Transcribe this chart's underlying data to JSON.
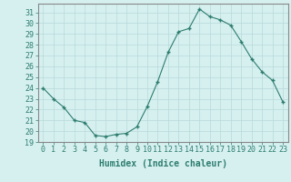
{
  "x": [
    0,
    1,
    2,
    3,
    4,
    5,
    6,
    7,
    8,
    9,
    10,
    11,
    12,
    13,
    14,
    15,
    16,
    17,
    18,
    19,
    20,
    21,
    22,
    23
  ],
  "y": [
    24.0,
    23.0,
    22.2,
    21.0,
    20.8,
    19.6,
    19.5,
    19.7,
    19.8,
    20.4,
    22.3,
    24.6,
    27.3,
    29.2,
    29.5,
    31.3,
    30.6,
    30.3,
    29.8,
    28.3,
    26.7,
    25.5,
    24.7,
    22.7
  ],
  "line_color": "#2d7d6e",
  "marker": "+",
  "marker_size": 3,
  "marker_lw": 1.0,
  "bg_color": "#d6f0f0",
  "grid_color": "#b8d8d8",
  "xlabel": "Humidex (Indice chaleur)",
  "xlabel_fontsize": 7,
  "tick_fontsize": 6,
  "xlim": [
    -0.5,
    23.5
  ],
  "ylim": [
    19,
    31.8
  ],
  "yticks": [
    19,
    20,
    21,
    22,
    23,
    24,
    25,
    26,
    27,
    28,
    29,
    30,
    31
  ],
  "xticks": [
    0,
    1,
    2,
    3,
    4,
    5,
    6,
    7,
    8,
    9,
    10,
    11,
    12,
    13,
    14,
    15,
    16,
    17,
    18,
    19,
    20,
    21,
    22,
    23
  ],
  "spine_color": "#888888",
  "linewidth": 0.8
}
